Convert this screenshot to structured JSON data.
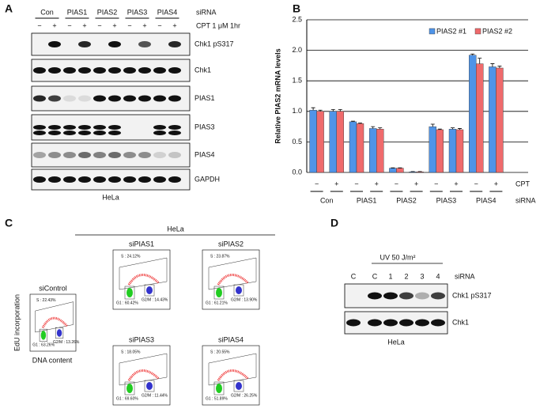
{
  "panel_labels": [
    "A",
    "B",
    "C",
    "D"
  ],
  "panel_a": {
    "sirna_groups": [
      "Con",
      "PIAS1",
      "PIAS2",
      "PIAS3",
      "PIAS4"
    ],
    "sirna_label": "siRNA",
    "treatment_signs": [
      "−",
      "+",
      "−",
      "+",
      "−",
      "+",
      "−",
      "+",
      "−",
      "+"
    ],
    "treatment_label": "CPT 1 μM 1hr",
    "blots": [
      "Chk1 pS317",
      "Chk1",
      "PIAS1",
      "PIAS3",
      "PIAS4",
      "GAPDH"
    ],
    "cell_line": "HeLa"
  },
  "chart_data": {
    "type": "bar",
    "y_label": "Relative PIAS2 mRNA levels",
    "categories": [
      "−",
      "+",
      "−",
      "+",
      "−",
      "+",
      "−",
      "+",
      "−",
      "+"
    ],
    "groups": [
      "Con",
      "PIAS1",
      "PIAS2",
      "PIAS3",
      "PIAS4"
    ],
    "row_labels": [
      "CPT",
      "siRNA"
    ],
    "series": [
      {
        "name": "PIAS2 #1",
        "color": "#4f94e8",
        "values": [
          1.02,
          1.0,
          0.83,
          0.72,
          0.07,
          0.01,
          0.75,
          0.71,
          1.92,
          1.73
        ],
        "errors": [
          0.04,
          0.03,
          0.01,
          0.03,
          0.005,
          0.005,
          0.04,
          0.02,
          0.02,
          0.05
        ]
      },
      {
        "name": "PIAS2 #2",
        "color": "#ef6a6c",
        "values": [
          1.0,
          1.0,
          0.8,
          0.71,
          0.07,
          0.01,
          0.7,
          0.7,
          1.78,
          1.71
        ],
        "errors": [
          0.02,
          0.03,
          0.01,
          0.02,
          0.005,
          0.005,
          0.01,
          0.02,
          0.09,
          0.03
        ]
      }
    ],
    "ylim": [
      0,
      2.5
    ],
    "yticks": [
      {
        "value": 0,
        "label": "0.0"
      },
      0.5,
      {
        "value": 1,
        "label": "1.0"
      },
      1.5,
      {
        "value": 2,
        "label": "2.0"
      },
      2.5
    ],
    "grid": true,
    "legend": "top-right"
  },
  "panel_c": {
    "cell_line": "HeLa",
    "y_label": "EdU incorporation",
    "x_label": "DNA content",
    "plots": [
      {
        "name": "siControl",
        "s": "S : 22.43%",
        "g1": "G1 : 63.26%",
        "g2m": "G2/M : 13.26%"
      },
      {
        "name": "siPIAS1",
        "s": "S : 24.12%",
        "g1": "G1 : 60.42%",
        "g2m": "G2/M : 14.43%"
      },
      {
        "name": "siPIAS2",
        "s": "S : 23.87%",
        "g1": "G1 : 61.21%",
        "g2m": "G2/M : 13.90%"
      },
      {
        "name": "siPIAS3",
        "s": "S : 18.05%",
        "g1": "G1 : 69.60%",
        "g2m": "G2/M : 11.44%"
      },
      {
        "name": "siPIAS4",
        "s": "S : 20.55%",
        "g1": "G1 : 51.89%",
        "g2m": "G2/M : 26.25%"
      }
    ]
  },
  "panel_d": {
    "treatment_label": "UV 50 J/m²",
    "lanes": [
      "C",
      "C",
      "1",
      "2",
      "3",
      "4"
    ],
    "sirna_label": "siRNA",
    "blots": [
      "Chk1 pS317",
      "Chk1"
    ],
    "cell_line": "HeLa"
  }
}
